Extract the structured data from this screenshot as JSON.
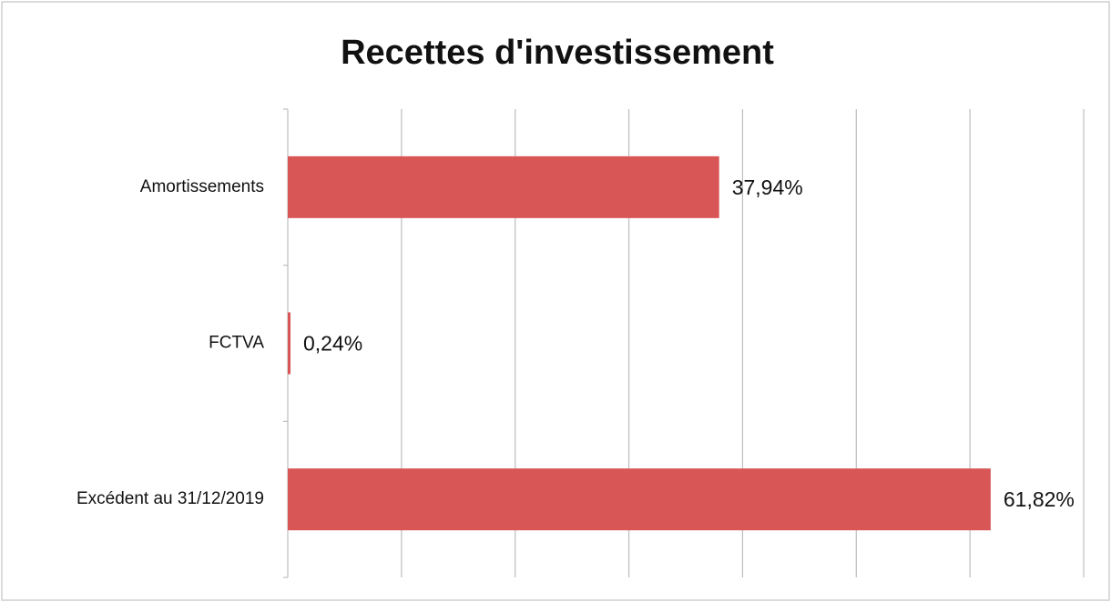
{
  "chart_data": {
    "type": "bar",
    "orientation": "horizontal",
    "title": "Recettes d'investissement",
    "categories": [
      "Amortissements",
      "FCTVA",
      "Excédent au 31/12/2019"
    ],
    "values": [
      37.94,
      0.24,
      61.82
    ],
    "value_labels": [
      "37,94%",
      "0,24%",
      "61,82%"
    ],
    "color": "#d85656",
    "xlim": [
      0,
      70
    ],
    "xticks": [
      0,
      10,
      20,
      30,
      40,
      50,
      60,
      70
    ],
    "grid": true
  }
}
